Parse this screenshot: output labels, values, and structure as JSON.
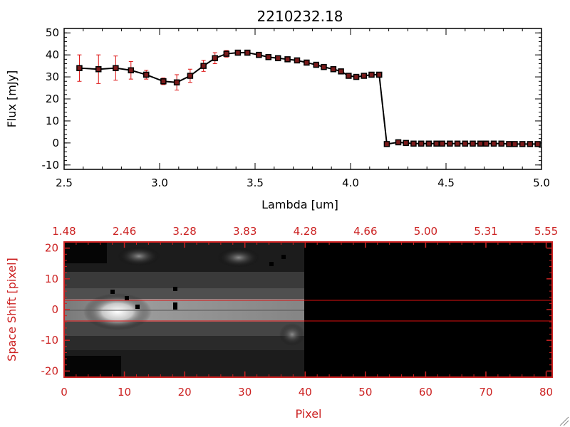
{
  "colors": {
    "background": "#ffffff",
    "axis_top": "#000000",
    "axis_bottom": "#cc2222",
    "marker": "#000000",
    "marker_fill": "#7a1a1a",
    "errorbar": "#dd1111",
    "cut_lines": "#dd1111"
  },
  "chart_data": [
    {
      "type": "line",
      "title": "2210232.18",
      "xlabel": "Lambda [um]",
      "ylabel": "Flux [mJy]",
      "xlim": [
        2.5,
        5.0
      ],
      "ylim": [
        -12,
        52
      ],
      "xticks": [
        "2.5",
        "3.0",
        "3.5",
        "4.0",
        "4.5",
        "5.0"
      ],
      "xtick_values": [
        2.5,
        3.0,
        3.5,
        4.0,
        4.5,
        5.0
      ],
      "yticks": [
        "-10",
        "0",
        "10",
        "20",
        "30",
        "40",
        "50"
      ],
      "ytick_values": [
        -10,
        0,
        10,
        20,
        30,
        40,
        50
      ],
      "series": [
        {
          "x": [
            2.58,
            2.68,
            2.77,
            2.85,
            2.93,
            3.02,
            3.09,
            3.16,
            3.23,
            3.29,
            3.35,
            3.41,
            3.46,
            3.52,
            3.57,
            3.62,
            3.67,
            3.72,
            3.77,
            3.82,
            3.86,
            3.91,
            3.95,
            3.99,
            4.03,
            4.07,
            4.11,
            4.15,
            4.19,
            4.25,
            4.29,
            4.33,
            4.37,
            4.41,
            4.45,
            4.48,
            4.52,
            4.56,
            4.6,
            4.64,
            4.68,
            4.71,
            4.75,
            4.79,
            4.83,
            4.86,
            4.9,
            4.94,
            4.98
          ],
          "y": [
            34.0,
            33.5,
            34.0,
            33.0,
            31.0,
            28.0,
            27.5,
            30.5,
            35.0,
            38.5,
            40.5,
            41.0,
            41.0,
            40.0,
            39.0,
            38.5,
            38.0,
            37.5,
            36.5,
            35.5,
            34.5,
            33.5,
            32.5,
            30.5,
            30.0,
            30.5,
            31.0,
            31.0,
            -0.5,
            0.3,
            0.0,
            -0.3,
            -0.3,
            -0.3,
            -0.3,
            -0.3,
            -0.3,
            -0.3,
            -0.3,
            -0.3,
            -0.3,
            -0.3,
            -0.3,
            -0.3,
            -0.5,
            -0.5,
            -0.5,
            -0.5,
            -0.5
          ],
          "err": [
            6.0,
            6.5,
            5.5,
            4.0,
            2.0,
            1.5,
            3.5,
            3.0,
            2.5,
            2.5,
            1.5,
            1.0,
            1.0,
            1.0,
            1.0,
            1.0,
            1.0,
            1.0,
            1.0,
            1.0,
            1.0,
            1.0,
            1.0,
            1.0,
            1.0,
            1.0,
            1.0,
            1.0,
            0.5,
            0.5,
            0.5,
            0.5,
            0.5,
            0.5,
            0.5,
            0.5,
            0.5,
            0.5,
            0.5,
            0.5,
            0.5,
            0.5,
            0.5,
            1.0,
            1.0,
            1.0,
            1.0,
            1.0,
            1.0
          ]
        }
      ]
    },
    {
      "type": "heatmap",
      "xlabel": "Pixel",
      "ylabel": "Space Shift [pixel]",
      "xlim": [
        0,
        81
      ],
      "ylim": [
        -22,
        22
      ],
      "xticks": [
        "0",
        "10",
        "20",
        "30",
        "40",
        "50",
        "60",
        "70",
        "80"
      ],
      "xtick_values": [
        0,
        10,
        20,
        30,
        40,
        50,
        60,
        70,
        80
      ],
      "top_xticks": [
        "1.48",
        "2.46",
        "3.28",
        "3.83",
        "4.28",
        "4.66",
        "5.00",
        "5.31",
        "5.55"
      ],
      "yticks": [
        "-20",
        "-10",
        "0",
        "10",
        "20"
      ],
      "ytick_values": [
        -20,
        -10,
        0,
        10,
        20
      ],
      "data_columns": [
        0,
        40
      ],
      "extraction_lines": [
        -3,
        3
      ]
    }
  ]
}
